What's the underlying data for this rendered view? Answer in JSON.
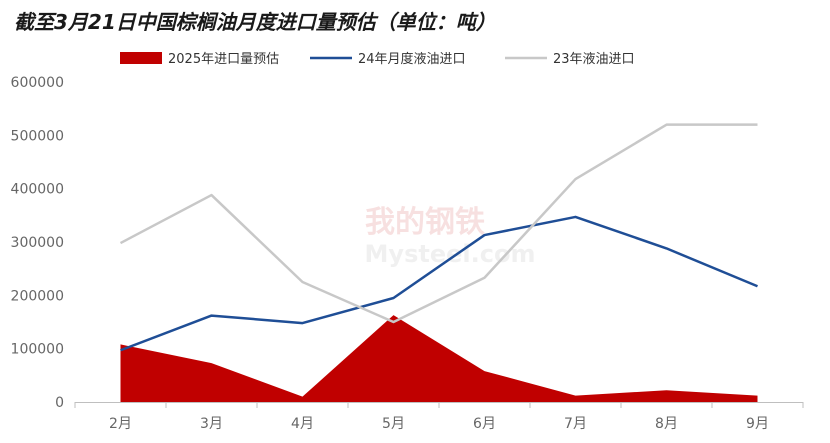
{
  "title": "截至3月21日中国棕榈油月度进口量预估（单位：吨）",
  "watermark": {
    "cn": "我的钢铁",
    "en": "Mysteel.com"
  },
  "chart_data": {
    "type": "area+line",
    "categories": [
      "2月",
      "3月",
      "4月",
      "5月",
      "6月",
      "7月",
      "8月",
      "9月"
    ],
    "ylim": [
      0,
      600000
    ],
    "yticks": [
      "0",
      "100000",
      "200000",
      "300000",
      "400000",
      "500000",
      "600000"
    ],
    "legend_position": "top",
    "grid": false,
    "series": [
      {
        "name": "2025年进口量预估",
        "type": "area",
        "color": "#C00000",
        "values": [
          108000,
          73000,
          10000,
          163000,
          58000,
          12000,
          22000,
          12000
        ]
      },
      {
        "name": "24年月度液油进口",
        "type": "line",
        "color": "#1F4E96",
        "values": [
          97000,
          162000,
          148000,
          195000,
          313000,
          347000,
          288000,
          217000
        ]
      },
      {
        "name": "23年液油进口",
        "type": "line",
        "color": "#C8C8C8",
        "values": [
          298000,
          388000,
          225000,
          150000,
          233000,
          418000,
          520000,
          520000
        ]
      }
    ]
  }
}
